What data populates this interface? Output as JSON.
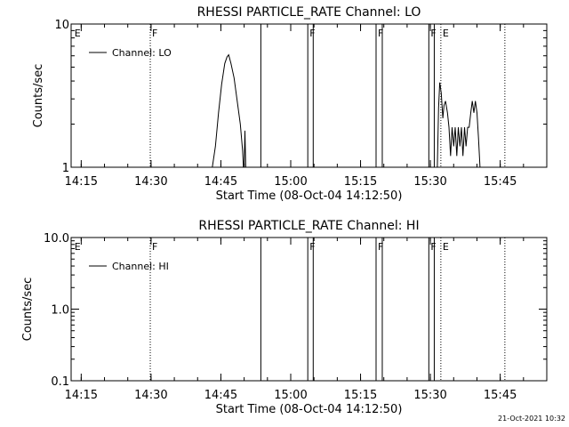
{
  "footer": {
    "date": "21-Oct-2021 10:32"
  },
  "chart_data": [
    {
      "type": "line",
      "title": "RHESSI PARTICLE_RATE Channel: LO",
      "xlabel": "Start Time (08-Oct-04 14:12:50)",
      "ylabel": "Counts/sec",
      "xlim": [
        "14:12:50",
        "15:55:00"
      ],
      "x_ticks": [
        "14:15",
        "14:30",
        "14:45",
        "15:00",
        "15:15",
        "15:30",
        "15:45"
      ],
      "y_scale": "log",
      "ylim": [
        1,
        10
      ],
      "y_tick_labels": [
        "1",
        "10"
      ],
      "legend": {
        "position": "top-left",
        "entries": [
          "Channel: LO"
        ]
      },
      "series": [
        {
          "name": "Channel: LO",
          "color": "#000000",
          "points": [
            [
              "14:43:10",
              1
            ],
            [
              "14:43:50",
              1.4
            ],
            [
              "14:44:30",
              2.4
            ],
            [
              "14:45:10",
              3.8
            ],
            [
              "14:45:50",
              5.3
            ],
            [
              "14:46:20",
              5.9
            ],
            [
              "14:46:40",
              6.1
            ],
            [
              "14:47:10",
              5.3
            ],
            [
              "14:47:50",
              4.2
            ],
            [
              "14:48:30",
              2.9
            ],
            [
              "14:49:10",
              2.0
            ],
            [
              "14:49:40",
              1.3
            ],
            [
              "14:49:50",
              1
            ],
            [
              "14:50:00",
              1
            ],
            [
              "14:50:10",
              1.8
            ],
            [
              "14:50:20",
              1
            ],
            [
              "15:31:30",
              1
            ],
            [
              "15:31:45",
              2.6
            ],
            [
              "15:32:00",
              3.9
            ],
            [
              "15:32:20",
              3.3
            ],
            [
              "15:32:40",
              2.2
            ],
            [
              "15:32:55",
              2.7
            ],
            [
              "15:33:15",
              2.9
            ],
            [
              "15:33:40",
              2.4
            ],
            [
              "15:34:00",
              1.9
            ],
            [
              "15:34:20",
              1.2
            ],
            [
              "15:34:40",
              1.9
            ],
            [
              "15:35:00",
              1.4
            ],
            [
              "15:35:20",
              1.9
            ],
            [
              "15:35:40",
              1.2
            ],
            [
              "15:36:00",
              1.9
            ],
            [
              "15:36:20",
              1.4
            ],
            [
              "15:36:40",
              1.9
            ],
            [
              "15:37:00",
              1.2
            ],
            [
              "15:37:20",
              1.9
            ],
            [
              "15:37:40",
              1.4
            ],
            [
              "15:38:00",
              1.9
            ],
            [
              "15:38:20",
              1.9
            ],
            [
              "15:38:40",
              2.4
            ],
            [
              "15:39:00",
              2.9
            ],
            [
              "15:39:20",
              2.4
            ],
            [
              "15:39:40",
              2.9
            ],
            [
              "15:40:00",
              2.4
            ],
            [
              "15:40:20",
              1.6
            ],
            [
              "15:40:40",
              1
            ]
          ]
        }
      ],
      "markers": [
        {
          "time": "14:13:10",
          "label": "E",
          "style": "none"
        },
        {
          "time": "14:29:50",
          "label": "F",
          "style": "dotted"
        },
        {
          "time": "14:53:35",
          "label": "",
          "style": "solid"
        },
        {
          "time": "15:03:40",
          "label": "F",
          "style": "solid"
        },
        {
          "time": "15:04:50",
          "label": "",
          "style": "solid"
        },
        {
          "time": "15:18:20",
          "label": "F",
          "style": "solid"
        },
        {
          "time": "15:19:40",
          "label": "",
          "style": "solid"
        },
        {
          "time": "15:29:40",
          "label": "F",
          "style": "solid"
        },
        {
          "time": "15:30:50",
          "label": "",
          "style": "solid"
        },
        {
          "time": "15:32:15",
          "label": "E",
          "style": "dotted"
        },
        {
          "time": "15:46:00",
          "label": "",
          "style": "dotted"
        }
      ]
    },
    {
      "type": "line",
      "title": "RHESSI PARTICLE_RATE Channel: HI",
      "xlabel": "Start Time (08-Oct-04 14:12:50)",
      "ylabel": "Counts/sec",
      "xlim": [
        "14:12:50",
        "15:55:00"
      ],
      "x_ticks": [
        "14:15",
        "14:30",
        "14:45",
        "15:00",
        "15:15",
        "15:30",
        "15:45"
      ],
      "y_scale": "log",
      "ylim": [
        0.1,
        10
      ],
      "y_tick_labels": [
        "0.1",
        "1.0",
        "10.0"
      ],
      "legend": {
        "position": "top-left",
        "entries": [
          "Channel: HI"
        ]
      },
      "series": [
        {
          "name": "Channel: HI",
          "color": "#000000",
          "points": []
        }
      ],
      "markers": [
        {
          "time": "14:13:10",
          "label": "E",
          "style": "none"
        },
        {
          "time": "14:29:50",
          "label": "F",
          "style": "dotted"
        },
        {
          "time": "14:53:35",
          "label": "",
          "style": "solid"
        },
        {
          "time": "15:03:40",
          "label": "F",
          "style": "solid"
        },
        {
          "time": "15:04:50",
          "label": "",
          "style": "solid"
        },
        {
          "time": "15:18:20",
          "label": "F",
          "style": "solid"
        },
        {
          "time": "15:19:40",
          "label": "",
          "style": "solid"
        },
        {
          "time": "15:29:40",
          "label": "F",
          "style": "solid"
        },
        {
          "time": "15:30:50",
          "label": "",
          "style": "solid"
        },
        {
          "time": "15:32:15",
          "label": "E",
          "style": "dotted"
        },
        {
          "time": "15:46:00",
          "label": "",
          "style": "dotted"
        }
      ]
    }
  ]
}
